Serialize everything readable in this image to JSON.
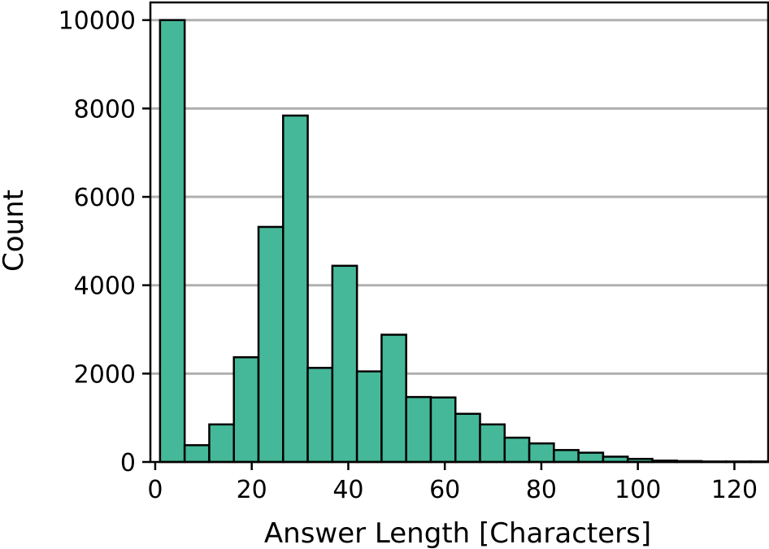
{
  "chart_data": {
    "type": "bar",
    "title": "",
    "xlabel": "Answer Length [Characters]",
    "ylabel": "Count",
    "xlim": [
      -1,
      127
    ],
    "ylim": [
      0,
      10400
    ],
    "xticks": [
      "0",
      "20",
      "40",
      "60",
      "80",
      "100",
      "120"
    ],
    "yticks": [
      "0",
      "2000",
      "4000",
      "6000",
      "8000",
      "10000"
    ],
    "grid": "horizontal",
    "bar_color": "#45b899",
    "bins": [
      {
        "x0": 1.0,
        "x1": 6.1,
        "count": 10000
      },
      {
        "x0": 6.1,
        "x1": 11.2,
        "count": 380
      },
      {
        "x0": 11.2,
        "x1": 16.3,
        "count": 850
      },
      {
        "x0": 16.3,
        "x1": 21.4,
        "count": 2370
      },
      {
        "x0": 21.4,
        "x1": 26.5,
        "count": 5320
      },
      {
        "x0": 26.5,
        "x1": 31.6,
        "count": 7840
      },
      {
        "x0": 31.6,
        "x1": 36.7,
        "count": 2130
      },
      {
        "x0": 36.7,
        "x1": 41.8,
        "count": 4440
      },
      {
        "x0": 41.8,
        "x1": 46.9,
        "count": 2050
      },
      {
        "x0": 46.9,
        "x1": 52.0,
        "count": 2880
      },
      {
        "x0": 52.0,
        "x1": 57.1,
        "count": 1470
      },
      {
        "x0": 57.1,
        "x1": 62.2,
        "count": 1460
      },
      {
        "x0": 62.2,
        "x1": 67.3,
        "count": 1090
      },
      {
        "x0": 67.3,
        "x1": 72.4,
        "count": 850
      },
      {
        "x0": 72.4,
        "x1": 77.5,
        "count": 550
      },
      {
        "x0": 77.5,
        "x1": 82.6,
        "count": 420
      },
      {
        "x0": 82.6,
        "x1": 87.7,
        "count": 270
      },
      {
        "x0": 87.7,
        "x1": 92.8,
        "count": 210
      },
      {
        "x0": 92.8,
        "x1": 97.9,
        "count": 120
      },
      {
        "x0": 97.9,
        "x1": 103.0,
        "count": 70
      },
      {
        "x0": 103.0,
        "x1": 108.1,
        "count": 30
      },
      {
        "x0": 108.1,
        "x1": 113.2,
        "count": 20
      },
      {
        "x0": 113.2,
        "x1": 118.3,
        "count": 10
      },
      {
        "x0": 118.3,
        "x1": 123.4,
        "count": 10
      },
      {
        "x0": 123.4,
        "x1": 128.5,
        "count": 10
      }
    ]
  }
}
